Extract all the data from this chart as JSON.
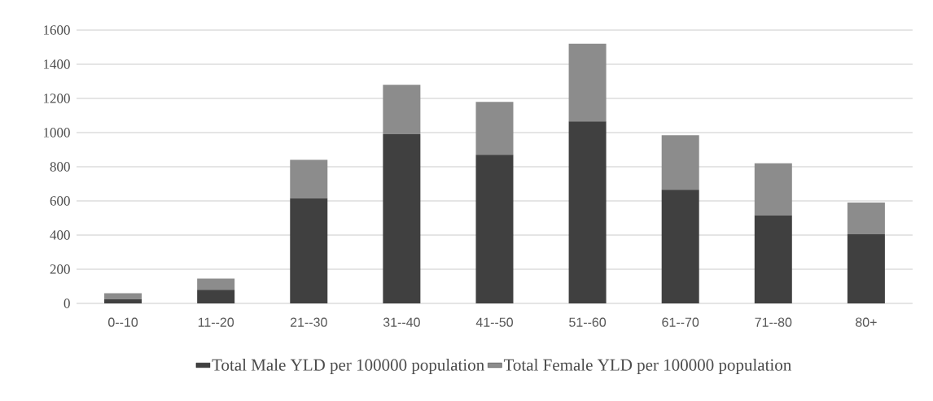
{
  "chart_data": {
    "type": "bar",
    "stacked": true,
    "categories": [
      "0--10",
      "11--20",
      "21--30",
      "31--40",
      "41--50",
      "51--60",
      "61--70",
      "71--80",
      "80+"
    ],
    "series": [
      {
        "name": "Total Male YLD per 100000 population",
        "color": "#404040",
        "values": [
          25,
          80,
          615,
          990,
          870,
          1065,
          665,
          515,
          405
        ]
      },
      {
        "name": "Total Female YLD  per 100000 population",
        "color": "#8c8c8c",
        "values": [
          35,
          65,
          225,
          290,
          310,
          455,
          320,
          305,
          185
        ]
      }
    ],
    "ylim": [
      0,
      1600
    ],
    "yticks": [
      0,
      200,
      400,
      600,
      800,
      1000,
      1200,
      1400,
      1600
    ],
    "grid": "y",
    "legend": "bottom"
  }
}
